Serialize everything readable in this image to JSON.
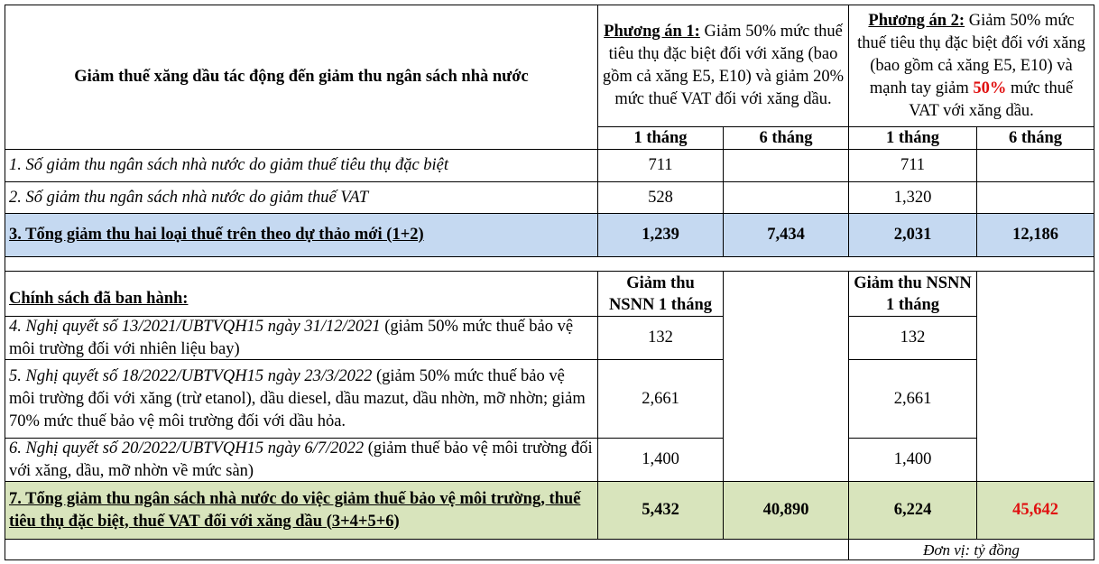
{
  "table": {
    "title": "Giảm thuế xăng dầu tác động đến giảm thu ngân sách nhà nước",
    "option_1": {
      "label": "Phương án 1:",
      "text": " Giảm 50% mức thuế tiêu thụ đặc biệt đối với xăng (bao gồm cả xăng E5, E10) và giảm 20% mức thuế VAT đối với xăng dầu."
    },
    "option_2": {
      "label": "Phương án 2:",
      "text_before": " Giảm 50% mức thuế tiêu thụ đặc biệt đối với xăng (bao gồm cả xăng E5, E10) và mạnh tay giảm ",
      "highlight": "50%",
      "text_after": " mức thuế VAT với xăng dầu."
    },
    "period_headers": [
      "1 tháng",
      "6 tháng",
      "1 tháng",
      "6 tháng"
    ],
    "rows": [
      {
        "label": "1. Số giảm thu ngân sách nhà nước do giảm thuế tiêu thụ đặc biệt",
        "plan_1_1m": "711",
        "plan_2_1m": "711"
      },
      {
        "label": "2. Số giảm thu ngân sách nhà nước do giảm thuế VAT",
        "plan_1_1m": "528",
        "plan_2_1m": "1,320"
      },
      {
        "label": "3. Tổng giảm thu hai loại thuế trên theo dự thảo mới (1+2)",
        "plan_1_1m": "1,239",
        "plan_1_6m": "7,434",
        "plan_2_1m": "2,031",
        "plan_2_6m": "12,186"
      }
    ],
    "policy_heading": "Chính sách đã ban hành:",
    "plan_1_policy_header": "Giảm thu NSNN 1 tháng",
    "plan_2_policy_header": "Giảm thu NSNN 1 tháng",
    "policies": [
      {
        "prefix": "4. Nghị quyết số 13/2021/UBTVQH15 ngày 31/12/2021",
        "detail": " (giảm 50% mức thuế bảo vệ môi trường đối với nhiên liệu bay)",
        "plan_1_1m": "132",
        "plan_2_1m": "132"
      },
      {
        "prefix": "5. Nghị quyết số 18/2022/UBTVQH15 ngày 23/3/2022",
        "detail": " (giảm 50% mức thuế bảo vệ môi trường đối với xăng (trừ etanol), dầu diesel, dầu mazut, dầu nhờn, mỡ nhờn; giảm 70% mức thuế bảo vệ môi trường đối với dầu hỏa.",
        "plan_1_1m": "2,661",
        "plan_2_1m": "2,661"
      },
      {
        "prefix": "6. Nghị quyết số 20/2022/UBTVQH15 ngày 6/7/2022",
        "detail": "  (giảm thuế bảo vệ môi trường đối với xăng, dầu, mỡ nhờn về mức sàn)",
        "plan_1_1m": "1,400",
        "plan_2_1m": "1,400"
      }
    ],
    "total": {
      "label": "7. Tổng giảm thu ngân sách nhà nước do việc giảm thuế bảo vệ môi trường, thuế tiêu thụ đặc biệt, thuế VAT đối với xăng dầu (3+4+5+6)",
      "plan_1_1m": "5,432",
      "plan_1_6m": "40,890",
      "plan_2_1m": "6,224",
      "plan_2_6m": "45,642"
    },
    "unit": "Đơn vị: tỷ đồng"
  }
}
